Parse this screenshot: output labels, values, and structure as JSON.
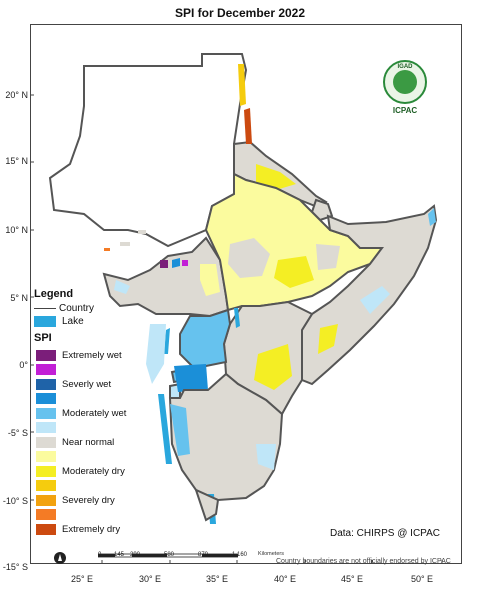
{
  "title": "SPI   for  December 2022",
  "axes": {
    "y_ticks": [
      "20° N",
      "15° N",
      "10° N",
      "5° N",
      "0°",
      "-5° S",
      "-10° S",
      "-15° S"
    ],
    "x_ticks": [
      "25° E",
      "30° E",
      "35° E",
      "40° E",
      "45° E",
      "50° E"
    ]
  },
  "legend": {
    "title": "Legend",
    "country_label": "Country",
    "lake_label": "Lake",
    "lake_color": "#2aa7dd",
    "spi_title": "SPI",
    "spi_classes": [
      {
        "label": "Extremely wet",
        "color": "#7b1e7a"
      },
      {
        "label": "",
        "color": "#c21fd6"
      },
      {
        "label": "Severly wet",
        "color": "#1f63a8"
      },
      {
        "label": "",
        "color": "#1b8fd8"
      },
      {
        "label": "Moderately wet",
        "color": "#66c2ee"
      },
      {
        "label": "",
        "color": "#bfe6f8"
      },
      {
        "label": "Near normal",
        "color": "#dddad3"
      },
      {
        "label": "",
        "color": "#fbfb9e"
      },
      {
        "label": "Moderately dry",
        "color": "#f4ee24"
      },
      {
        "label": "",
        "color": "#f5cc0e"
      },
      {
        "label": "Severely dry",
        "color": "#f2a20f"
      },
      {
        "label": "",
        "color": "#f47b25"
      },
      {
        "label": "Extremely dry",
        "color": "#cc4a10"
      }
    ]
  },
  "logo": {
    "top_text": "IGAD",
    "name": "ICPAC"
  },
  "data_source": "Data: CHIRPS @ ICPAC",
  "scale": {
    "labels": [
      "0",
      "145",
      "290",
      "580",
      "870",
      "1,160"
    ],
    "unit": "Kilometers"
  },
  "disclaimer": "Country boundaries are not officially endorsed by ICPAC",
  "colors": {
    "border": "#555555",
    "near_normal": "#dddad3"
  }
}
